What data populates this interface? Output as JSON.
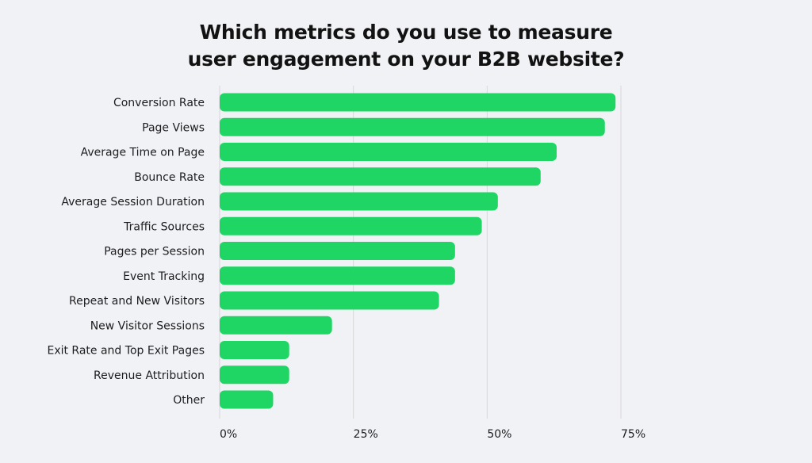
{
  "title_line1": "Which metrics do you use to measure",
  "title_line2": "user engagement on your B2B website?",
  "colors": {
    "background": "#f1f2f5",
    "bar": "#1fd665",
    "grid": "#d6d7db",
    "text": "#1d1d1f"
  },
  "chart_data": {
    "type": "bar",
    "orientation": "horizontal",
    "title": "Which metrics do you use to measure user engagement on your B2B website?",
    "xlabel": "",
    "ylabel": "",
    "xlim": [
      0,
      75
    ],
    "x_ticks": [
      0,
      25,
      50,
      75
    ],
    "x_tick_labels": [
      "0%",
      "25%",
      "50%",
      "75%"
    ],
    "grid": true,
    "categories": [
      "Conversion Rate",
      "Page Views",
      "Average Time on Page",
      "Bounce Rate",
      "Average Session Duration",
      "Traffic Sources",
      "Pages per Session",
      "Event Tracking",
      "Repeat and New Visitors",
      "New Visitor Sessions",
      "Exit Rate and Top Exit Pages",
      "Revenue Attribution",
      "Other"
    ],
    "values": [
      74,
      72,
      63,
      60,
      52,
      49,
      44,
      44,
      41,
      21,
      13,
      13,
      10
    ]
  }
}
